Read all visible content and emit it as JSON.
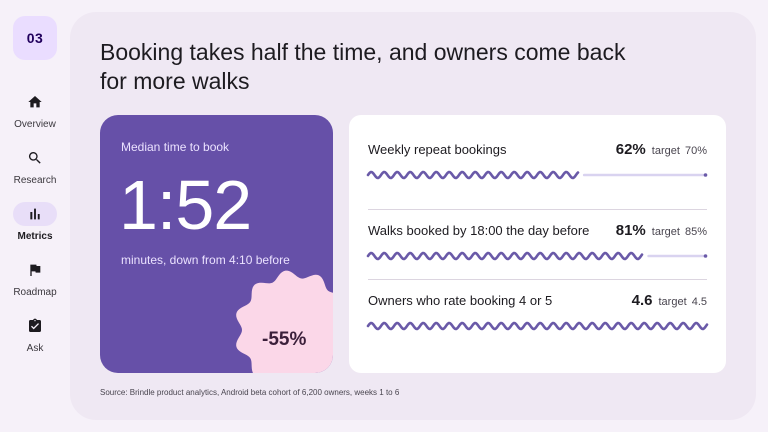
{
  "page": {
    "number": "03"
  },
  "nav": {
    "items": [
      {
        "label": "Overview",
        "icon": "home-icon",
        "active": false
      },
      {
        "label": "Research",
        "icon": "search-icon",
        "active": false
      },
      {
        "label": "Metrics",
        "icon": "bar-chart-icon",
        "active": true
      },
      {
        "label": "Roadmap",
        "icon": "flag-icon",
        "active": false
      },
      {
        "label": "Ask",
        "icon": "clipboard-check-icon",
        "active": false
      }
    ]
  },
  "slide": {
    "title": "Booking takes half the time, and owners come back for more walks",
    "hero": {
      "label": "Median time to book",
      "value": "1:52",
      "caption": "minutes, down from 4:10 before",
      "badge": "-55%"
    },
    "metrics": [
      {
        "label": "Weekly repeat bookings",
        "value": "62%",
        "target_label": "target",
        "target": "70%",
        "progress": 0.62,
        "goal": 0.7
      },
      {
        "label": "Walks booked by 18:00 the day before",
        "value": "81%",
        "target_label": "target",
        "target": "85%",
        "progress": 0.81,
        "goal": 0.85
      },
      {
        "label": "Owners who rate booking 4 or 5",
        "value": "4.6",
        "target_label": "target",
        "target": "4.5",
        "progress": 1.0,
        "goal": 0.9
      }
    ],
    "source": "Source: Brindle product analytics, Android beta cohort of 6,200 owners, weeks 1 to 6"
  },
  "colors": {
    "accent": "#6650a8",
    "wave": "#6a5aa8",
    "track": "#d9d3f0",
    "badge": "#fbd7e8",
    "badge_text": "#3b1f3a",
    "background": "#f6f1f9",
    "card": "#efe8f3"
  }
}
